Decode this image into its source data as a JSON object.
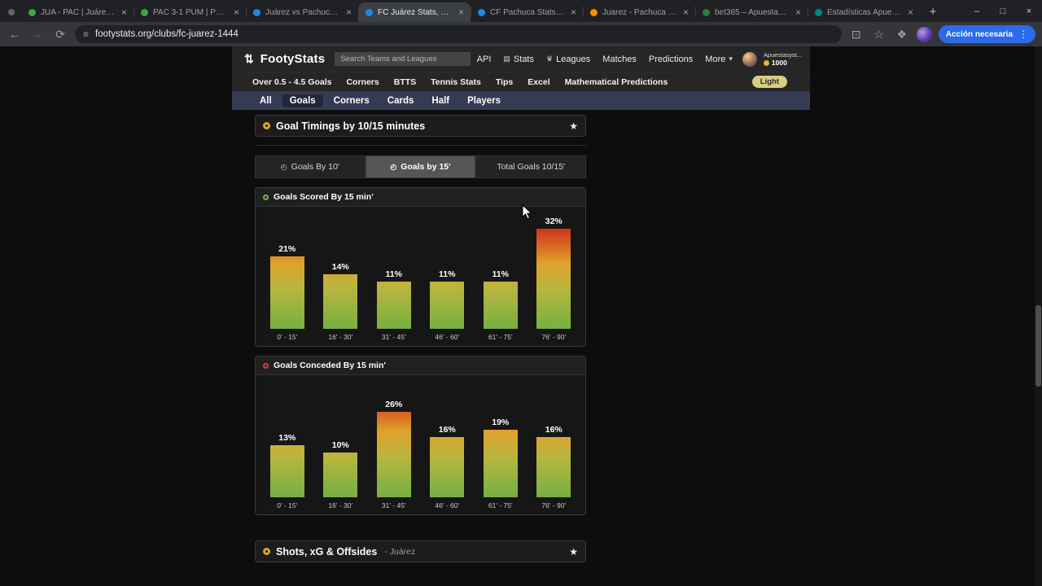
{
  "browser": {
    "tabs": [
      {
        "title": "JUA - PAC | Juárez vs Pach",
        "favicon_color": "#43a047",
        "active": false
      },
      {
        "title": "PAC 3-1 PUM | Pachuca v",
        "favicon_color": "#43a047",
        "active": false
      },
      {
        "title": "Juárez vs Pachuca Stats, H",
        "favicon_color": "#1e88e5",
        "active": false
      },
      {
        "title": "FC Juárez Stats, Form & x",
        "favicon_color": "#1e88e5",
        "active": true
      },
      {
        "title": "CF Pachuca Stats, Form &",
        "favicon_color": "#1e88e5",
        "active": false
      },
      {
        "title": "Juarez - Pachuca Odds,",
        "favicon_color": "#fb8c00",
        "active": false
      },
      {
        "title": "bet365 – Apuestas depor",
        "favicon_color": "#2e7d32",
        "active": false
      },
      {
        "title": "Estadísticas Apuestasyst",
        "favicon_color": "#00897b",
        "active": false
      }
    ],
    "url": "footystats.org/clubs/fc-juarez-1444",
    "action_button": "Acción necesaria"
  },
  "site": {
    "logo_text": "FootyStats",
    "search_placeholder": "Search Teams and Leagues",
    "nav": [
      {
        "label": "API"
      },
      {
        "label": "Stats",
        "icon": "stats"
      },
      {
        "label": "Leagues",
        "icon": "trophy"
      },
      {
        "label": "Matches"
      },
      {
        "label": "Predictions"
      },
      {
        "label": "More",
        "caret": true
      }
    ],
    "account": {
      "name": "Apuestasyst...",
      "coins": "1000"
    },
    "subnav": [
      "Over 0.5 - 4.5 Goals",
      "Corners",
      "BTTS",
      "Tennis Stats",
      "Tips",
      "Excel",
      "Mathematical Predictions"
    ],
    "theme_toggle": "Light",
    "page_tabs": [
      "All",
      "Goals",
      "Corners",
      "Cards",
      "Half",
      "Players"
    ],
    "active_page_tab": "Goals"
  },
  "section": {
    "title": "Goal Timings by 10/15 minutes",
    "toggles": [
      {
        "label": "Goals By 10'",
        "clock": true,
        "active": false
      },
      {
        "label": "Goals by 15'",
        "clock": true,
        "active": true
      },
      {
        "label": "Total Goals 10/15'",
        "clock": false,
        "active": false
      }
    ]
  },
  "chart_data": [
    {
      "type": "bar",
      "title": "Goals Scored By 15 min'",
      "icon_color": "#7cb342",
      "categories": [
        "0' - 15'",
        "16' - 30'",
        "31' - 45'",
        "46' - 60'",
        "61' - 75'",
        "76' - 90'"
      ],
      "values": [
        21,
        14,
        11,
        11,
        11,
        32
      ],
      "unit": "%",
      "ylim": [
        0,
        35
      ],
      "grid": false,
      "legend": false,
      "bar_gradient": [
        "#c1271c",
        "#dfa32c",
        "#76b043"
      ]
    },
    {
      "type": "bar",
      "title": "Goals Conceded By 15 min'",
      "icon_color": "#e53935",
      "categories": [
        "0' - 15'",
        "16' - 30'",
        "31' - 45'",
        "46' - 60'",
        "61' - 75'",
        "76' - 90'"
      ],
      "values": [
        13,
        10,
        26,
        16,
        19,
        16
      ],
      "unit": "%",
      "ylim": [
        0,
        35
      ],
      "grid": false,
      "legend": false,
      "bar_gradient": [
        "#c1271c",
        "#dfa32c",
        "#76b043"
      ]
    }
  ],
  "next_section": {
    "title": "Shots, xG & Offsides",
    "subtitle": "- Juárez"
  },
  "icons": {
    "logo": "⇅",
    "star": "★",
    "caret_down": "▾",
    "clock": "◴",
    "back": "←",
    "forward": "→",
    "reload": "⟳",
    "plus": "+",
    "minimize": "–",
    "maximize": "□",
    "window_close": "×",
    "tab_close": "×",
    "site_info": "≡",
    "pip": "⊡",
    "bookmark_star": "☆",
    "extensions": "❖",
    "menu_kebab": "⋮",
    "stats": "▤",
    "trophy": "♛"
  }
}
